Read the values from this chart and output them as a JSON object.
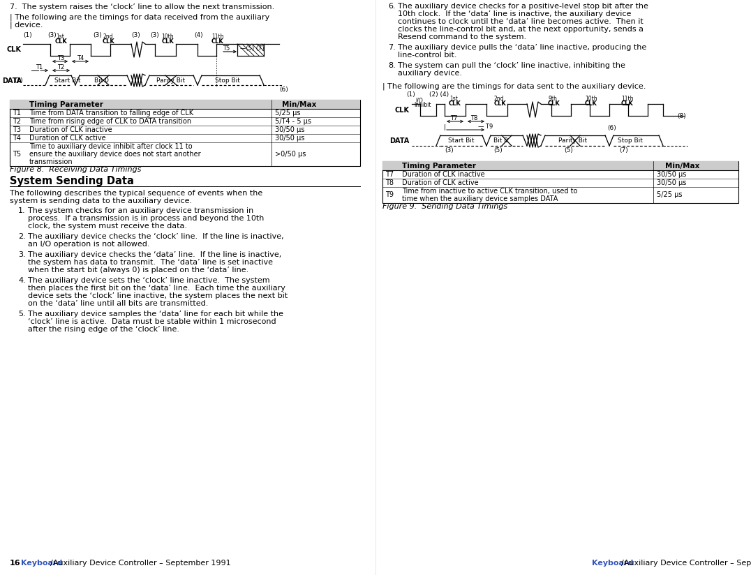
{
  "bg_color": "#ffffff",
  "fig_width": 10.76,
  "fig_height": 8.24,
  "left_table_rows": [
    [
      "T1",
      "Time from DATA transition to falling edge of CLK",
      "5/25 μs"
    ],
    [
      "T2",
      "Time from rising edge of CLK to DATA transition",
      "5/T4 - 5 μs"
    ],
    [
      "T3",
      "Duration of CLK inactive",
      "30/50 μs"
    ],
    [
      "T4",
      "Duration of CLK active",
      "30/50 μs"
    ],
    [
      "T5",
      "Time to auxiliary device inhibit after clock 11 to\nensure the auxiliary device does not start another\ntransmission",
      ">0/50 μs"
    ]
  ],
  "right_table_rows": [
    [
      "T7",
      "Duration of CLK inactive",
      "30/50 μs"
    ],
    [
      "T8",
      "Duration of CLK active",
      "30/50 μs"
    ],
    [
      "T9",
      "Time from inactive to active CLK transition, used to\ntime when the auxiliary device samples DATA",
      "5/25 μs"
    ]
  ]
}
